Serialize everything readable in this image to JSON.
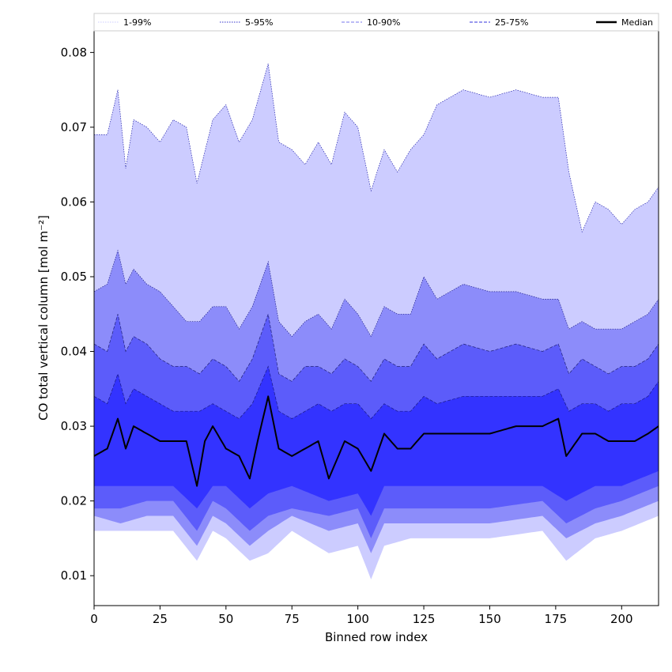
{
  "chart_data": {
    "type": "area",
    "title": "",
    "xlabel": "Binned row index",
    "ylabel": "CO total vertical column [mol m⁻²]",
    "xlim": [
      0,
      214
    ],
    "ylim": [
      0.006,
      0.083
    ],
    "x_ticks": [
      0,
      25,
      50,
      75,
      100,
      125,
      150,
      175,
      200
    ],
    "y_ticks": [
      0.01,
      0.02,
      0.03,
      0.04,
      0.05,
      0.06,
      0.07,
      0.08
    ],
    "y_tick_labels": [
      "0.01",
      "0.02",
      "0.03",
      "0.04",
      "0.05",
      "0.06",
      "0.07",
      "0.08"
    ],
    "grid": false,
    "legend_position": "top",
    "legend": [
      {
        "label": "1-99%",
        "color": "#ccccff",
        "style": "dotted"
      },
      {
        "label": "5-95%",
        "color": "#3333cc",
        "style": "dotted"
      },
      {
        "label": "10-90%",
        "color": "#7777ee",
        "style": "dashed"
      },
      {
        "label": "25-75%",
        "color": "#3333dd",
        "style": "dashed"
      },
      {
        "label": "Median",
        "color": "#000000",
        "style": "solid"
      }
    ],
    "series": [
      {
        "name": "1-99%",
        "color": "#ccccff",
        "upper_anchors": [
          [
            0,
            0.069
          ],
          [
            5,
            0.069
          ],
          [
            9,
            0.075
          ],
          [
            12,
            0.0645
          ],
          [
            15,
            0.071
          ],
          [
            20,
            0.07
          ],
          [
            25,
            0.068
          ],
          [
            30,
            0.071
          ],
          [
            35,
            0.07
          ],
          [
            39,
            0.0625
          ],
          [
            45,
            0.071
          ],
          [
            50,
            0.073
          ],
          [
            55,
            0.068
          ],
          [
            60,
            0.071
          ],
          [
            66,
            0.0785
          ],
          [
            70,
            0.068
          ],
          [
            75,
            0.067
          ],
          [
            80,
            0.065
          ],
          [
            85,
            0.068
          ],
          [
            90,
            0.065
          ],
          [
            95,
            0.072
          ],
          [
            100,
            0.07
          ],
          [
            105,
            0.0615
          ],
          [
            110,
            0.067
          ],
          [
            115,
            0.064
          ],
          [
            120,
            0.067
          ],
          [
            125,
            0.069
          ],
          [
            130,
            0.073
          ],
          [
            140,
            0.075
          ],
          [
            150,
            0.074
          ],
          [
            160,
            0.075
          ],
          [
            170,
            0.074
          ],
          [
            176,
            0.074
          ],
          [
            180,
            0.064
          ],
          [
            185,
            0.056
          ],
          [
            190,
            0.06
          ],
          [
            195,
            0.059
          ],
          [
            200,
            0.057
          ],
          [
            205,
            0.059
          ],
          [
            210,
            0.06
          ],
          [
            214,
            0.062
          ]
        ],
        "lower_anchors": [
          [
            0,
            0.016
          ],
          [
            10,
            0.016
          ],
          [
            20,
            0.016
          ],
          [
            30,
            0.016
          ],
          [
            39,
            0.012
          ],
          [
            45,
            0.016
          ],
          [
            50,
            0.015
          ],
          [
            59,
            0.012
          ],
          [
            66,
            0.013
          ],
          [
            75,
            0.016
          ],
          [
            89,
            0.013
          ],
          [
            100,
            0.014
          ],
          [
            105,
            0.0095
          ],
          [
            110,
            0.014
          ],
          [
            120,
            0.015
          ],
          [
            130,
            0.015
          ],
          [
            150,
            0.015
          ],
          [
            170,
            0.016
          ],
          [
            179,
            0.012
          ],
          [
            190,
            0.015
          ],
          [
            200,
            0.016
          ],
          [
            214,
            0.018
          ]
        ]
      },
      {
        "name": "5-95%",
        "color": "#8c8cfa",
        "upper_anchors": [
          [
            0,
            0.048
          ],
          [
            5,
            0.049
          ],
          [
            9,
            0.0535
          ],
          [
            12,
            0.049
          ],
          [
            15,
            0.051
          ],
          [
            20,
            0.049
          ],
          [
            25,
            0.048
          ],
          [
            30,
            0.046
          ],
          [
            35,
            0.044
          ],
          [
            40,
            0.044
          ],
          [
            45,
            0.046
          ],
          [
            50,
            0.046
          ],
          [
            55,
            0.043
          ],
          [
            60,
            0.046
          ],
          [
            66,
            0.052
          ],
          [
            70,
            0.044
          ],
          [
            75,
            0.042
          ],
          [
            80,
            0.044
          ],
          [
            85,
            0.045
          ],
          [
            90,
            0.043
          ],
          [
            95,
            0.047
          ],
          [
            100,
            0.045
          ],
          [
            105,
            0.042
          ],
          [
            110,
            0.046
          ],
          [
            115,
            0.045
          ],
          [
            120,
            0.045
          ],
          [
            125,
            0.05
          ],
          [
            130,
            0.047
          ],
          [
            140,
            0.049
          ],
          [
            150,
            0.048
          ],
          [
            160,
            0.048
          ],
          [
            170,
            0.047
          ],
          [
            176,
            0.047
          ],
          [
            180,
            0.043
          ],
          [
            185,
            0.044
          ],
          [
            190,
            0.043
          ],
          [
            195,
            0.043
          ],
          [
            200,
            0.043
          ],
          [
            205,
            0.044
          ],
          [
            210,
            0.045
          ],
          [
            214,
            0.047
          ]
        ],
        "lower_anchors": [
          [
            0,
            0.018
          ],
          [
            10,
            0.017
          ],
          [
            20,
            0.018
          ],
          [
            30,
            0.018
          ],
          [
            39,
            0.014
          ],
          [
            45,
            0.018
          ],
          [
            50,
            0.017
          ],
          [
            59,
            0.014
          ],
          [
            66,
            0.016
          ],
          [
            75,
            0.018
          ],
          [
            89,
            0.016
          ],
          [
            100,
            0.017
          ],
          [
            105,
            0.013
          ],
          [
            110,
            0.017
          ],
          [
            120,
            0.017
          ],
          [
            130,
            0.017
          ],
          [
            150,
            0.017
          ],
          [
            170,
            0.018
          ],
          [
            179,
            0.015
          ],
          [
            190,
            0.017
          ],
          [
            200,
            0.018
          ],
          [
            214,
            0.02
          ]
        ]
      },
      {
        "name": "10-90%",
        "color": "#5c5cfa",
        "upper_anchors": [
          [
            0,
            0.041
          ],
          [
            5,
            0.04
          ],
          [
            9,
            0.045
          ],
          [
            12,
            0.04
          ],
          [
            15,
            0.042
          ],
          [
            20,
            0.041
          ],
          [
            25,
            0.039
          ],
          [
            30,
            0.038
          ],
          [
            35,
            0.038
          ],
          [
            40,
            0.037
          ],
          [
            45,
            0.039
          ],
          [
            50,
            0.038
          ],
          [
            55,
            0.036
          ],
          [
            60,
            0.039
          ],
          [
            66,
            0.045
          ],
          [
            70,
            0.037
          ],
          [
            75,
            0.036
          ],
          [
            80,
            0.038
          ],
          [
            85,
            0.038
          ],
          [
            90,
            0.037
          ],
          [
            95,
            0.039
          ],
          [
            100,
            0.038
          ],
          [
            105,
            0.036
          ],
          [
            110,
            0.039
          ],
          [
            115,
            0.038
          ],
          [
            120,
            0.038
          ],
          [
            125,
            0.041
          ],
          [
            130,
            0.039
          ],
          [
            140,
            0.041
          ],
          [
            150,
            0.04
          ],
          [
            160,
            0.041
          ],
          [
            170,
            0.04
          ],
          [
            176,
            0.041
          ],
          [
            180,
            0.037
          ],
          [
            185,
            0.039
          ],
          [
            190,
            0.038
          ],
          [
            195,
            0.037
          ],
          [
            200,
            0.038
          ],
          [
            205,
            0.038
          ],
          [
            210,
            0.039
          ],
          [
            214,
            0.041
          ]
        ],
        "lower_anchors": [
          [
            0,
            0.019
          ],
          [
            10,
            0.019
          ],
          [
            20,
            0.02
          ],
          [
            30,
            0.02
          ],
          [
            39,
            0.016
          ],
          [
            45,
            0.02
          ],
          [
            50,
            0.019
          ],
          [
            59,
            0.016
          ],
          [
            66,
            0.018
          ],
          [
            75,
            0.019
          ],
          [
            89,
            0.018
          ],
          [
            100,
            0.019
          ],
          [
            105,
            0.015
          ],
          [
            110,
            0.019
          ],
          [
            120,
            0.019
          ],
          [
            130,
            0.019
          ],
          [
            150,
            0.019
          ],
          [
            170,
            0.02
          ],
          [
            179,
            0.017
          ],
          [
            190,
            0.019
          ],
          [
            200,
            0.02
          ],
          [
            214,
            0.022
          ]
        ]
      },
      {
        "name": "25-75%",
        "color": "#3333ff",
        "upper_anchors": [
          [
            0,
            0.034
          ],
          [
            5,
            0.033
          ],
          [
            9,
            0.037
          ],
          [
            12,
            0.033
          ],
          [
            15,
            0.035
          ],
          [
            20,
            0.034
          ],
          [
            25,
            0.033
          ],
          [
            30,
            0.032
          ],
          [
            35,
            0.032
          ],
          [
            40,
            0.032
          ],
          [
            45,
            0.033
          ],
          [
            50,
            0.032
          ],
          [
            55,
            0.031
          ],
          [
            60,
            0.033
          ],
          [
            66,
            0.038
          ],
          [
            70,
            0.032
          ],
          [
            75,
            0.031
          ],
          [
            80,
            0.032
          ],
          [
            85,
            0.033
          ],
          [
            90,
            0.032
          ],
          [
            95,
            0.033
          ],
          [
            100,
            0.033
          ],
          [
            105,
            0.031
          ],
          [
            110,
            0.033
          ],
          [
            115,
            0.032
          ],
          [
            120,
            0.032
          ],
          [
            125,
            0.034
          ],
          [
            130,
            0.033
          ],
          [
            140,
            0.034
          ],
          [
            150,
            0.034
          ],
          [
            160,
            0.034
          ],
          [
            170,
            0.034
          ],
          [
            176,
            0.035
          ],
          [
            180,
            0.032
          ],
          [
            185,
            0.033
          ],
          [
            190,
            0.033
          ],
          [
            195,
            0.032
          ],
          [
            200,
            0.033
          ],
          [
            205,
            0.033
          ],
          [
            210,
            0.034
          ],
          [
            214,
            0.036
          ]
        ],
        "lower_anchors": [
          [
            0,
            0.022
          ],
          [
            10,
            0.022
          ],
          [
            20,
            0.022
          ],
          [
            30,
            0.022
          ],
          [
            39,
            0.019
          ],
          [
            45,
            0.022
          ],
          [
            50,
            0.022
          ],
          [
            59,
            0.019
          ],
          [
            66,
            0.021
          ],
          [
            75,
            0.022
          ],
          [
            89,
            0.02
          ],
          [
            100,
            0.021
          ],
          [
            105,
            0.018
          ],
          [
            110,
            0.022
          ],
          [
            120,
            0.022
          ],
          [
            130,
            0.022
          ],
          [
            150,
            0.022
          ],
          [
            170,
            0.022
          ],
          [
            179,
            0.02
          ],
          [
            190,
            0.022
          ],
          [
            200,
            0.022
          ],
          [
            214,
            0.024
          ]
        ]
      },
      {
        "name": "Median",
        "color": "#000000",
        "anchors": [
          [
            0,
            0.026
          ],
          [
            5,
            0.027
          ],
          [
            9,
            0.031
          ],
          [
            12,
            0.027
          ],
          [
            15,
            0.03
          ],
          [
            20,
            0.029
          ],
          [
            25,
            0.028
          ],
          [
            30,
            0.028
          ],
          [
            35,
            0.028
          ],
          [
            39,
            0.022
          ],
          [
            42,
            0.028
          ],
          [
            45,
            0.03
          ],
          [
            50,
            0.027
          ],
          [
            55,
            0.026
          ],
          [
            59,
            0.023
          ],
          [
            62,
            0.028
          ],
          [
            66,
            0.034
          ],
          [
            70,
            0.027
          ],
          [
            75,
            0.026
          ],
          [
            80,
            0.027
          ],
          [
            85,
            0.028
          ],
          [
            89,
            0.023
          ],
          [
            95,
            0.028
          ],
          [
            100,
            0.027
          ],
          [
            105,
            0.024
          ],
          [
            110,
            0.029
          ],
          [
            115,
            0.027
          ],
          [
            120,
            0.027
          ],
          [
            125,
            0.029
          ],
          [
            130,
            0.029
          ],
          [
            140,
            0.029
          ],
          [
            150,
            0.029
          ],
          [
            160,
            0.03
          ],
          [
            170,
            0.03
          ],
          [
            176,
            0.031
          ],
          [
            179,
            0.026
          ],
          [
            185,
            0.029
          ],
          [
            190,
            0.029
          ],
          [
            195,
            0.028
          ],
          [
            200,
            0.028
          ],
          [
            205,
            0.028
          ],
          [
            210,
            0.029
          ],
          [
            214,
            0.03
          ]
        ]
      }
    ]
  }
}
